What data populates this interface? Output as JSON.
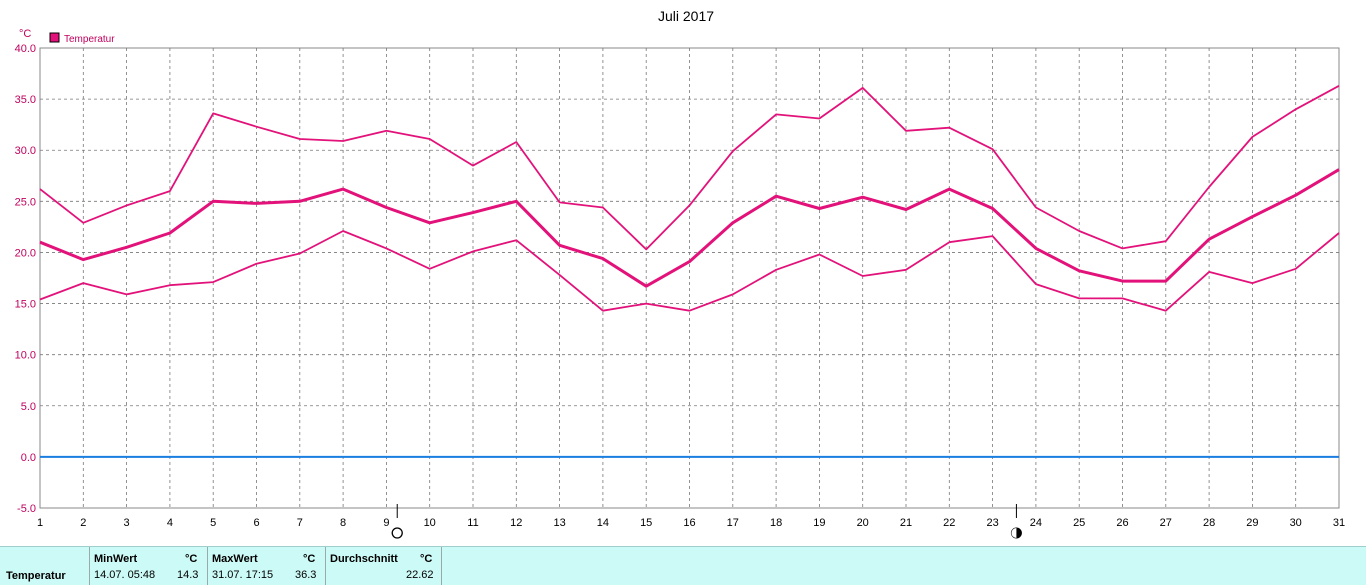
{
  "chart_data": {
    "type": "line",
    "title": "Juli 2017",
    "yunit": "°C",
    "legend": [
      "Temperatur"
    ],
    "legend_position": "top-left",
    "x": [
      1,
      2,
      3,
      4,
      5,
      6,
      7,
      8,
      9,
      10,
      11,
      12,
      13,
      14,
      15,
      16,
      17,
      18,
      19,
      20,
      21,
      22,
      23,
      24,
      25,
      26,
      27,
      28,
      29,
      30,
      31
    ],
    "ylim": [
      -5,
      40
    ],
    "yticks": [
      "-5.0",
      "0.0",
      "5.0",
      "10.0",
      "15.0",
      "20.0",
      "25.0",
      "30.0",
      "35.0",
      "40.0"
    ],
    "grid": true,
    "series": [
      {
        "values": [
          26.2,
          22.9,
          24.6,
          26.0,
          33.6,
          32.3,
          31.1,
          30.9,
          31.9,
          31.1,
          28.5,
          30.8,
          24.9,
          24.4,
          20.3,
          24.6,
          29.9,
          33.5,
          33.1,
          36.1,
          31.9,
          32.2,
          30.1,
          24.4,
          22.1,
          20.4,
          21.1,
          26.4,
          31.3,
          34.0,
          36.3
        ]
      },
      {
        "values": [
          21.0,
          19.3,
          20.5,
          21.9,
          25.0,
          24.8,
          25.0,
          26.2,
          24.4,
          22.9,
          23.9,
          25.0,
          20.7,
          19.4,
          16.7,
          19.1,
          22.9,
          25.5,
          24.3,
          25.4,
          24.2,
          26.2,
          24.3,
          20.4,
          18.2,
          17.2,
          17.2,
          21.3,
          23.5,
          25.6,
          28.1
        ]
      },
      {
        "values": [
          15.4,
          17.0,
          15.9,
          16.8,
          17.1,
          18.9,
          19.9,
          22.1,
          20.4,
          18.4,
          20.1,
          21.2,
          17.8,
          14.3,
          15.0,
          14.3,
          15.9,
          18.3,
          19.8,
          17.7,
          18.3,
          21.0,
          21.6,
          16.9,
          15.5,
          15.5,
          14.3,
          18.1,
          17.0,
          18.4,
          21.9
        ]
      }
    ],
    "zero_line_color": "#1a7ee0",
    "series_color": "#e2127a",
    "moon_markers": [
      {
        "day": 9.25,
        "symbol": "○",
        "name": "full-moon-icon"
      },
      {
        "day": 23.55,
        "symbol": "◐",
        "name": "new-moon-icon"
      }
    ]
  },
  "stats": {
    "row_label": "Temperatur",
    "min_header": "MinWert",
    "min_unit": "°C",
    "min_date": "14.07.  05:48",
    "min_value": "14.3",
    "max_header": "MaxWert",
    "max_unit": "°C",
    "max_date": "31.07.  17:15",
    "max_value": "36.3",
    "avg_header": "Durchschnitt",
    "avg_unit": "°C",
    "avg_value": "22.62"
  }
}
